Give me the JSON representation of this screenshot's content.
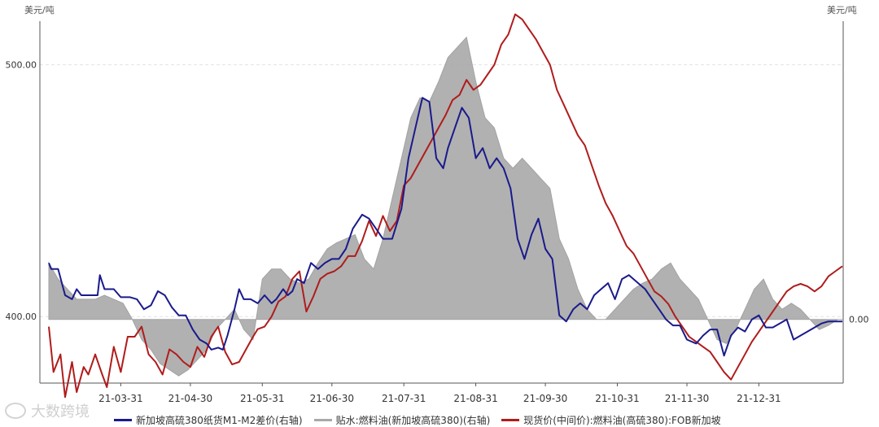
{
  "units": {
    "left": "美元/吨",
    "right": "美元/吨"
  },
  "watermark": "大数跨境",
  "chart_data": {
    "type": "line",
    "x_ticks": [
      "21-03-31",
      "21-04-30",
      "21-05-31",
      "21-06-30",
      "21-07-31",
      "21-08-31",
      "21-09-30",
      "21-10-31",
      "21-11-30",
      "21-12-31"
    ],
    "left_axis": {
      "min": 373.6,
      "max": 517.3,
      "ticks": [
        400.0,
        500.0
      ],
      "tick_labels": [
        "400.00",
        "500.00"
      ]
    },
    "right_axis": {
      "min": -31.6,
      "max": 148,
      "ticks": [
        0
      ],
      "tick_labels": [
        "0.00"
      ]
    },
    "grid": true,
    "legend_position": "bottom",
    "series": [
      {
        "name": "新加坡高硫380纸货M1-M2差价(右轴)",
        "axis": "right",
        "style": "line",
        "color": "#1a1a8c",
        "x": [
          0,
          1,
          4,
          7,
          10,
          12,
          14,
          18,
          21,
          22,
          24,
          26,
          28,
          31,
          35,
          38,
          41,
          44,
          47,
          50,
          53,
          56,
          59,
          62,
          65,
          68,
          70,
          73,
          75,
          77,
          80,
          82,
          84,
          87,
          90,
          93,
          96,
          98,
          101,
          103,
          105,
          107,
          110,
          113,
          116,
          119,
          122,
          125,
          128,
          131,
          135,
          138,
          141,
          144,
          148,
          152,
          155,
          158,
          161,
          164,
          167,
          170,
          172,
          175,
          178,
          181,
          184,
          187,
          190,
          193,
          196,
          199,
          202,
          205,
          208,
          211,
          214,
          217,
          220,
          223,
          226,
          229,
          232,
          235,
          238,
          241,
          244,
          247,
          250,
          254,
          257,
          260,
          263,
          266,
          269,
          272,
          275,
          279,
          282,
          285,
          288,
          291,
          294,
          297,
          300,
          303,
          306,
          309,
          312,
          315,
          318,
          321,
          324,
          327,
          330,
          333,
          336,
          339,
          342
        ],
        "values": [
          28,
          25,
          25,
          12,
          10,
          15,
          12,
          12,
          12,
          22,
          15,
          15,
          15,
          11,
          11,
          10,
          5,
          7,
          14,
          12,
          6,
          2,
          2,
          -5,
          -10,
          -12,
          -15,
          -14,
          -15,
          -8,
          5,
          15,
          10,
          10,
          8,
          12,
          8,
          10,
          15,
          12,
          14,
          20,
          18,
          28,
          25,
          28,
          30,
          30,
          35,
          45,
          52,
          50,
          45,
          40,
          40,
          55,
          80,
          95,
          110,
          108,
          80,
          75,
          85,
          95,
          105,
          100,
          80,
          85,
          75,
          80,
          75,
          65,
          40,
          30,
          42,
          50,
          35,
          30,
          2,
          -1,
          5,
          8,
          5,
          12,
          15,
          18,
          10,
          20,
          22,
          18,
          15,
          10,
          5,
          0,
          -3,
          -3,
          -10,
          -12,
          -8,
          -5,
          -5,
          -18,
          -8,
          -4,
          -6,
          0,
          2,
          -4,
          -4,
          -2,
          0,
          -10,
          -8,
          -6,
          -4,
          -2,
          -1,
          -1,
          -1
        ]
      },
      {
        "name": "贴水:燃料油(新加坡高硫380)(右轴)",
        "axis": "right",
        "style": "area",
        "color": "#a9a9a9",
        "x": [
          0,
          4,
          8,
          12,
          16,
          20,
          24,
          28,
          32,
          36,
          40,
          44,
          48,
          52,
          56,
          60,
          64,
          68,
          72,
          76,
          80,
          84,
          88,
          92,
          96,
          100,
          104,
          108,
          112,
          116,
          120,
          124,
          128,
          132,
          136,
          140,
          144,
          148,
          152,
          156,
          160,
          164,
          168,
          172,
          176,
          180,
          184,
          188,
          192,
          196,
          200,
          204,
          208,
          212,
          216,
          220,
          224,
          228,
          232,
          236,
          240,
          244,
          248,
          252,
          256,
          260,
          264,
          268,
          272,
          276,
          280,
          284,
          288,
          292,
          296,
          300,
          304,
          308,
          312,
          316,
          320,
          324,
          328,
          332,
          336,
          340,
          342
        ],
        "values": [
          28,
          20,
          15,
          10,
          10,
          10,
          12,
          10,
          8,
          0,
          -10,
          -15,
          -22,
          -25,
          -28,
          -25,
          -20,
          -15,
          -5,
          0,
          5,
          -5,
          -10,
          20,
          25,
          25,
          20,
          18,
          20,
          28,
          35,
          38,
          40,
          42,
          30,
          25,
          40,
          60,
          80,
          100,
          110,
          108,
          118,
          130,
          135,
          140,
          118,
          100,
          95,
          80,
          75,
          80,
          75,
          70,
          65,
          40,
          30,
          15,
          5,
          0,
          0,
          5,
          10,
          15,
          18,
          20,
          25,
          28,
          20,
          15,
          10,
          0,
          -10,
          -12,
          -5,
          5,
          15,
          20,
          10,
          5,
          8,
          5,
          0,
          -5,
          -3,
          0,
          0
        ]
      },
      {
        "name": "现货价(中间价):燃料油(高硫380):FOB新加坡",
        "axis": "left",
        "style": "line",
        "color": "#b01c1c",
        "x": [
          0,
          2,
          5,
          7,
          10,
          12,
          15,
          17,
          20,
          23,
          25,
          28,
          31,
          34,
          37,
          40,
          43,
          46,
          49,
          52,
          55,
          58,
          61,
          64,
          67,
          70,
          73,
          76,
          79,
          82,
          85,
          88,
          90,
          93,
          96,
          99,
          102,
          105,
          108,
          111,
          114,
          117,
          120,
          123,
          126,
          129,
          132,
          135,
          138,
          141,
          144,
          147,
          150,
          153,
          156,
          159,
          162,
          165,
          168,
          171,
          174,
          177,
          180,
          183,
          186,
          189,
          192,
          195,
          198,
          201,
          204,
          207,
          210,
          213,
          216,
          219,
          222,
          225,
          228,
          231,
          234,
          237,
          240,
          243,
          246,
          249,
          252,
          255,
          258,
          261,
          264,
          267,
          270,
          273,
          276,
          279,
          282,
          285,
          288,
          291,
          294,
          297,
          300,
          303,
          306,
          309,
          312,
          315,
          318,
          321,
          324,
          327,
          330,
          333,
          336,
          339,
          342
        ],
        "values": [
          396,
          378,
          385,
          368,
          382,
          370,
          380,
          377,
          385,
          377,
          372,
          388,
          378,
          392,
          392,
          396,
          385,
          382,
          377,
          387,
          385,
          382,
          380,
          388,
          384,
          392,
          396,
          386,
          381,
          382,
          387,
          392,
          395,
          396,
          400,
          406,
          408,
          415,
          418,
          402,
          408,
          415,
          417,
          418,
          420,
          424,
          424,
          430,
          438,
          432,
          440,
          434,
          438,
          452,
          455,
          460,
          465,
          470,
          475,
          480,
          486,
          488,
          494,
          490,
          492,
          496,
          500,
          508,
          512,
          520,
          518,
          514,
          510,
          505,
          500,
          490,
          484,
          478,
          472,
          468,
          460,
          452,
          445,
          440,
          434,
          428,
          425,
          420,
          415,
          410,
          408,
          405,
          400,
          396,
          392,
          390,
          388,
          386,
          382,
          378,
          375,
          380,
          385,
          390,
          394,
          398,
          402,
          406,
          410,
          412,
          413,
          412,
          410,
          412,
          416,
          418,
          420
        ]
      }
    ]
  }
}
